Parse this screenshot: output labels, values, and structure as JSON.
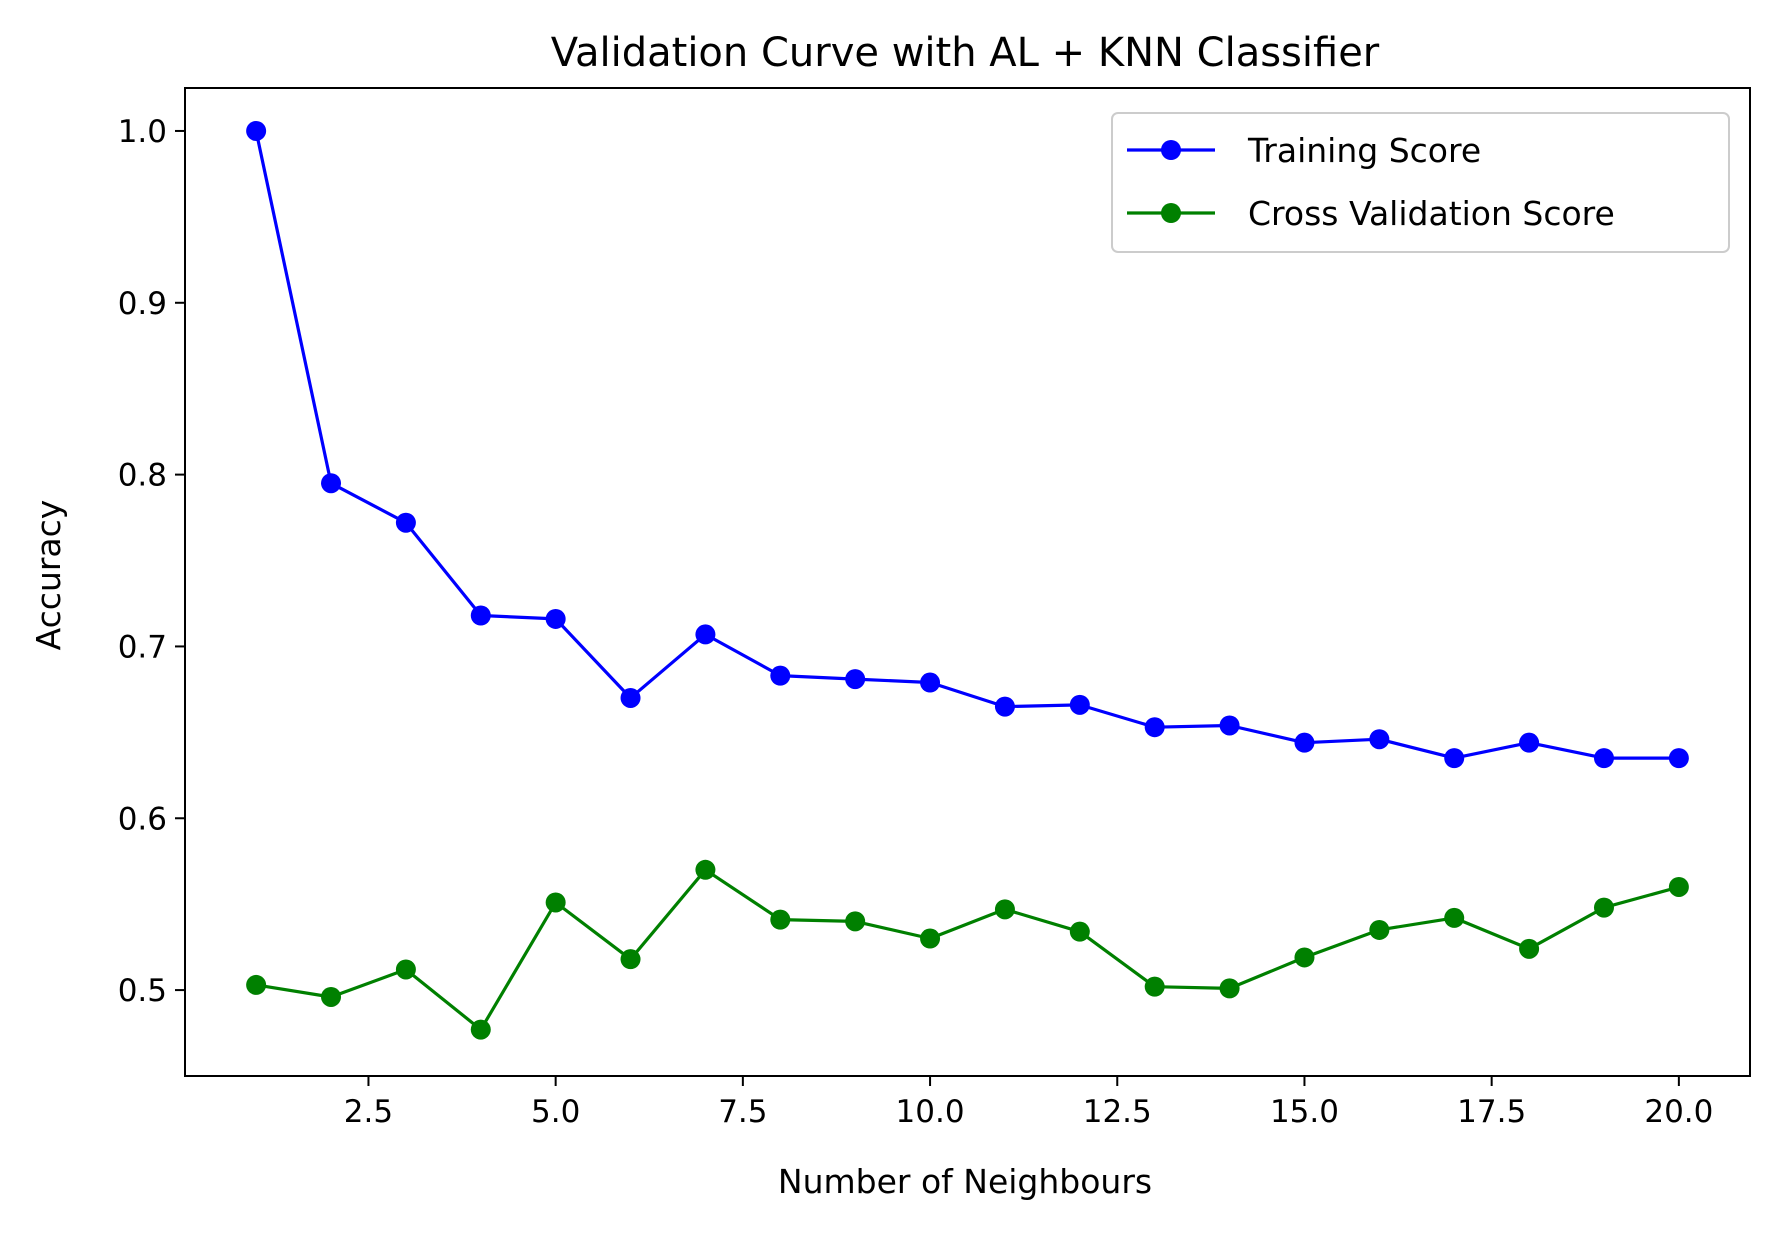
{
  "chart_data": {
    "type": "line",
    "title": "Validation Curve with AL + KNN Classifier",
    "xlabel": "Number of Neighbours",
    "ylabel": "Accuracy",
    "xlim": [
      0.05,
      20.95
    ],
    "ylim": [
      0.45,
      1.025
    ],
    "xticks": [
      2.5,
      5.0,
      7.5,
      10.0,
      12.5,
      15.0,
      17.5,
      20.0
    ],
    "xtick_labels": [
      "2.5",
      "5.0",
      "7.5",
      "10.0",
      "12.5",
      "15.0",
      "17.5",
      "20.0"
    ],
    "yticks": [
      0.5,
      0.6,
      0.7,
      0.8,
      0.9,
      1.0
    ],
    "ytick_labels": [
      "0.5",
      "0.6",
      "0.7",
      "0.8",
      "0.9",
      "1.0"
    ],
    "grid": false,
    "legend_position": "top-right",
    "x": [
      1,
      2,
      3,
      4,
      5,
      6,
      7,
      8,
      9,
      10,
      11,
      12,
      13,
      14,
      15,
      16,
      17,
      18,
      19,
      20
    ],
    "series": [
      {
        "name": "Training Score",
        "color": "#0000ff",
        "values": [
          1.0,
          0.795,
          0.772,
          0.718,
          0.716,
          0.67,
          0.707,
          0.683,
          0.681,
          0.679,
          0.665,
          0.666,
          0.653,
          0.654,
          0.644,
          0.646,
          0.635,
          0.644,
          0.635,
          0.635
        ]
      },
      {
        "name": "Cross Validation Score",
        "color": "#008000",
        "values": [
          0.503,
          0.496,
          0.512,
          0.477,
          0.551,
          0.518,
          0.57,
          0.541,
          0.54,
          0.53,
          0.547,
          0.534,
          0.502,
          0.501,
          0.519,
          0.535,
          0.542,
          0.524,
          0.548,
          0.56
        ]
      }
    ]
  }
}
